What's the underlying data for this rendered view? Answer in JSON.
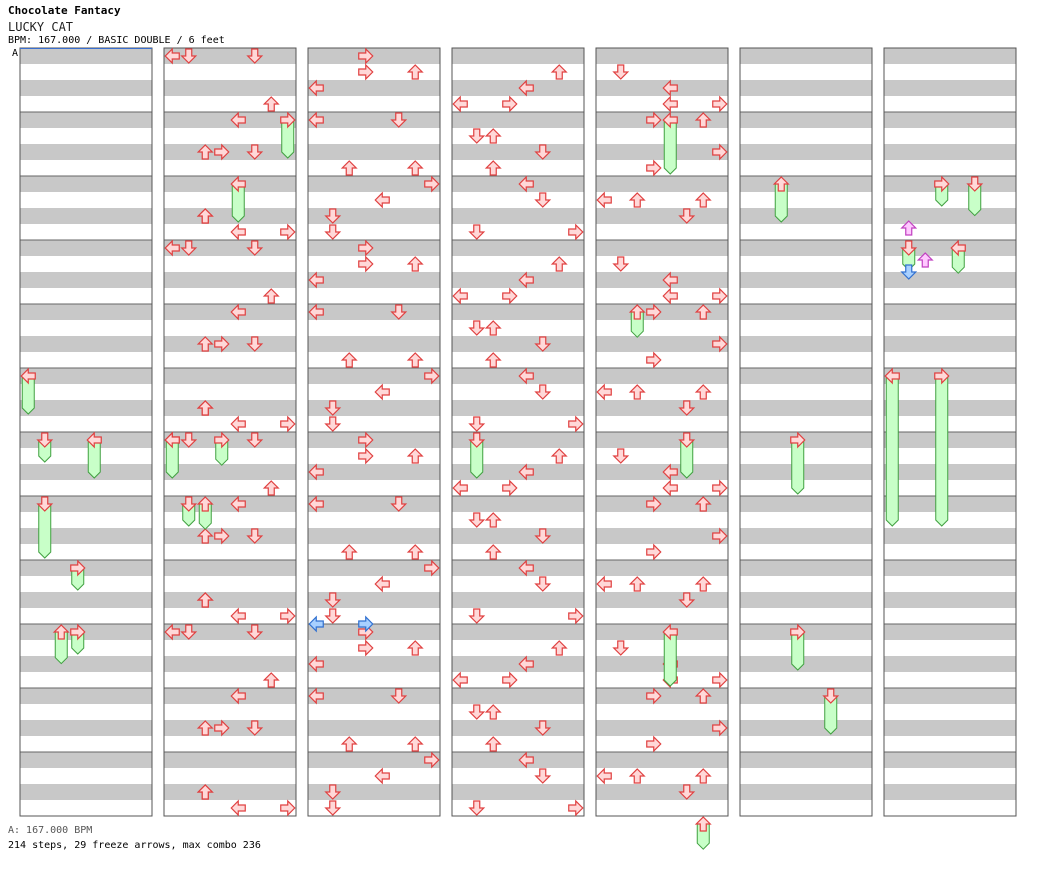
{
  "header": {
    "site_title": "Chocolate Fantacy",
    "song_title": "LUCKY CAT",
    "info": "BPM: 167.000 / BASIC DOUBLE / 6 feet",
    "marker": "A"
  },
  "footer": {
    "bpm_line": "A: 167.000 BPM",
    "stats_line": "214 steps, 29 freeze arrows, max combo 236"
  },
  "colors": {
    "stripe": "#c8c8c8",
    "arrow_red_fill": "#ffd8d8",
    "arrow_red_stroke": "#e04040",
    "arrow_blue_fill": "#a8d0ff",
    "arrow_blue_stroke": "#3070d0",
    "arrow_pink_fill": "#ffc8ff",
    "arrow_pink_stroke": "#c040c0",
    "freeze_fill": "#c8ffc8",
    "freeze_stroke": "#40a040"
  },
  "chart_data": {
    "type": "step-chart",
    "bpm": 167.0,
    "mode": "BASIC DOUBLE",
    "difficulty_feet": 6,
    "totals": {
      "steps": 214,
      "freeze_arrows": 29,
      "max_combo": 236
    },
    "column_count": 7,
    "measures_per_column": 12,
    "lanes": 8,
    "lane_directions": [
      "left",
      "down",
      "up",
      "right",
      "left",
      "down",
      "up",
      "right"
    ],
    "notes": [
      [
        1,
        1,
        0
      ],
      [
        1,
        2,
        2
      ],
      [
        1,
        2,
        6
      ],
      [
        1,
        0,
        4
      ],
      [
        1,
        4,
        7
      ],
      [
        1,
        5,
        2
      ],
      [
        1,
        6,
        3
      ],
      [
        1,
        7,
        3
      ],
      [
        1,
        4,
        4
      ],
      [
        1,
        5,
        4
      ],
      [
        1,
        2,
        6
      ],
      [
        1,
        3,
        6
      ],
      [
        2,
        0,
        2
      ],
      [
        2,
        1,
        2
      ],
      [
        2,
        2,
        7
      ],
      [
        2,
        3,
        5
      ],
      [
        2,
        4,
        5
      ],
      [
        2,
        5,
        0
      ],
      [
        2,
        6,
        1
      ],
      [
        2,
        7,
        0
      ],
      [
        2,
        0,
        4
      ],
      [
        2,
        3,
        4
      ],
      [
        2,
        1,
        3
      ],
      [
        2,
        6,
        7
      ],
      [
        3,
        0,
        3
      ],
      [
        3,
        1,
        3
      ],
      [
        3,
        2,
        7
      ],
      [
        3,
        3,
        3
      ],
      [
        3,
        4,
        4
      ],
      [
        3,
        5,
        2
      ],
      [
        3,
        6,
        1
      ],
      [
        3,
        7,
        3
      ],
      [
        3,
        2,
        5
      ],
      [
        3,
        4,
        6
      ],
      [
        3,
        5,
        5
      ],
      [
        3,
        1,
        5
      ],
      [
        4,
        1,
        1
      ],
      [
        4,
        2,
        1
      ],
      [
        4,
        3,
        4
      ],
      [
        4,
        4,
        6
      ],
      [
        4,
        5,
        2
      ],
      [
        4,
        6,
        0
      ],
      [
        4,
        7,
        3
      ],
      [
        4,
        0,
        5
      ],
      [
        4,
        3,
        3
      ],
      [
        4,
        4,
        7
      ],
      [
        4,
        6,
        1
      ],
      [
        4,
        7,
        6
      ]
    ],
    "freezes": [
      [
        0,
        5,
        0,
        1
      ],
      [
        0,
        6,
        1,
        0.5
      ],
      [
        0,
        6,
        4,
        1
      ],
      [
        0,
        7,
        1,
        1.5
      ],
      [
        0,
        8,
        3,
        0.5
      ],
      [
        0,
        9,
        2,
        0.8
      ],
      [
        0,
        9,
        3,
        0.5
      ],
      [
        1,
        1,
        7,
        1
      ],
      [
        1,
        2,
        4,
        1
      ],
      [
        1,
        6,
        0,
        1
      ],
      [
        1,
        6,
        3,
        0.6
      ],
      [
        1,
        7,
        1,
        0.5
      ],
      [
        1,
        7,
        2,
        0.6
      ],
      [
        3,
        6,
        1,
        1
      ],
      [
        4,
        1,
        4,
        1.5
      ],
      [
        4,
        4,
        2,
        0.6
      ],
      [
        4,
        6,
        5,
        1
      ],
      [
        4,
        9,
        4,
        1.5
      ],
      [
        4,
        12,
        6,
        0.6
      ],
      [
        5,
        2,
        2,
        1
      ],
      [
        5,
        6,
        3,
        1.5
      ],
      [
        5,
        9,
        3,
        1
      ],
      [
        5,
        10,
        5,
        1
      ],
      [
        6,
        2,
        3,
        0.5
      ],
      [
        6,
        2,
        5,
        0.8
      ],
      [
        6,
        3,
        1,
        0.5
      ],
      [
        6,
        3,
        4,
        0.6
      ],
      [
        6,
        5,
        0,
        4.5
      ],
      [
        6,
        5,
        3,
        4.5
      ]
    ]
  }
}
